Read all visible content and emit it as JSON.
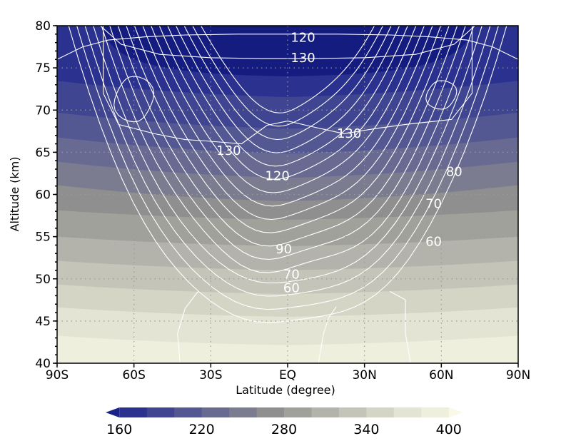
{
  "chart_data": {
    "type": "contour",
    "xlabel": "Latitude (degree)",
    "ylabel": "Altitude (km)",
    "xlim": [
      -90,
      90
    ],
    "ylim": [
      40,
      80
    ],
    "x_ticks": [
      {
        "value": -90,
        "label": "90S"
      },
      {
        "value": -60,
        "label": "60S"
      },
      {
        "value": -30,
        "label": "30S"
      },
      {
        "value": 0,
        "label": "EQ"
      },
      {
        "value": 30,
        "label": "30N"
      },
      {
        "value": 60,
        "label": "60N"
      },
      {
        "value": 90,
        "label": "90N"
      }
    ],
    "y_ticks": [
      40,
      45,
      50,
      55,
      60,
      65,
      70,
      75,
      80
    ],
    "y_tick_labels": [
      "40",
      "45",
      "50",
      "55",
      "60",
      "65",
      "70",
      "75",
      "80"
    ],
    "grid": "dotted",
    "shading": {
      "levels": [
        160,
        180,
        200,
        220,
        240,
        260,
        280,
        300,
        320,
        340,
        360,
        380,
        400
      ],
      "colors": [
        "#1a2387",
        "#2a318e",
        "#3f4590",
        "#535792",
        "#686a92",
        "#7b7c8f",
        "#8e8f8e",
        "#a1a19c",
        "#b3b3ab",
        "#c4c4b9",
        "#d5d5c6",
        "#e4e4d4",
        "#efefde",
        "#f9f9e6"
      ],
      "profile": [
        {
          "alt": 40,
          "value": 395
        },
        {
          "alt": 45,
          "value": 372
        },
        {
          "alt": 50,
          "value": 335
        },
        {
          "alt": 55,
          "value": 300
        },
        {
          "alt": 60,
          "value": 268
        },
        {
          "alt": 65,
          "value": 232
        },
        {
          "alt": 70,
          "value": 198
        },
        {
          "alt": 75,
          "value": 172
        },
        {
          "alt": 80,
          "value": 162
        }
      ]
    },
    "contours": {
      "unit_note": "",
      "labeled": [
        {
          "text": "120",
          "lat": 6,
          "alt": 78.7
        },
        {
          "text": "130",
          "lat": 6,
          "alt": 76.3
        },
        {
          "text": "130",
          "lat": -23,
          "alt": 65.3
        },
        {
          "text": "130",
          "lat": 24,
          "alt": 67.3
        },
        {
          "text": "120",
          "lat": -4,
          "alt": 62.3
        },
        {
          "text": "80",
          "lat": 65,
          "alt": 62.8
        },
        {
          "text": "70",
          "lat": 57,
          "alt": 59.0
        },
        {
          "text": "60",
          "lat": 57,
          "alt": 54.5
        },
        {
          "text": "90",
          "lat": -1.5,
          "alt": 53.6
        },
        {
          "text": "70",
          "lat": 1.5,
          "alt": 50.6
        },
        {
          "text": "60",
          "lat": 1.5,
          "alt": 49.0
        }
      ]
    },
    "colorbar": {
      "tick_labels": [
        "160",
        "220",
        "280",
        "340",
        "400"
      ],
      "tick_values": [
        160,
        220,
        280,
        340,
        400
      ],
      "min": 150,
      "max": 410
    }
  }
}
